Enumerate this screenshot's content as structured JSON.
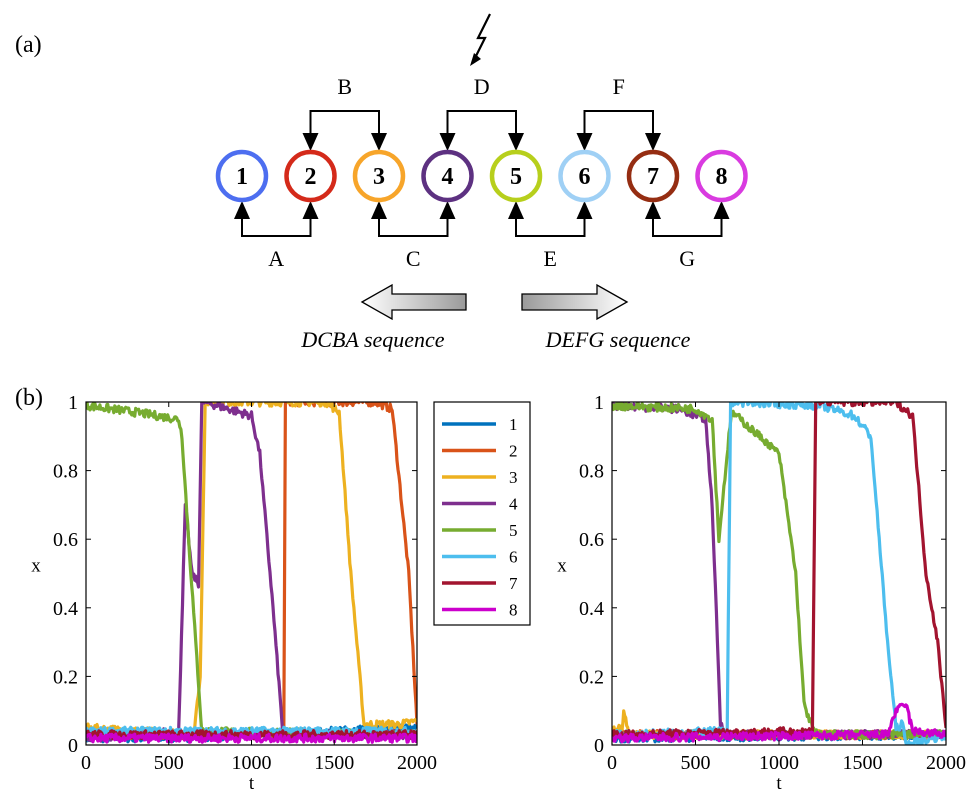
{
  "panel_a": {
    "label": "(a)",
    "lightning_icon": "lightning-bolt-icon",
    "nodes": [
      {
        "id": "1",
        "color": "#4d6ef0"
      },
      {
        "id": "2",
        "color": "#d42a1a"
      },
      {
        "id": "3",
        "color": "#f7a52a"
      },
      {
        "id": "4",
        "color": "#5d3181"
      },
      {
        "id": "5",
        "color": "#b7cf1c"
      },
      {
        "id": "6",
        "color": "#9fd0f5"
      },
      {
        "id": "7",
        "color": "#952d12"
      },
      {
        "id": "8",
        "color": "#d93be0"
      }
    ],
    "top_links": [
      {
        "label": "B",
        "from": 1,
        "to": 2
      },
      {
        "label": "D",
        "from": 3,
        "to": 4
      },
      {
        "label": "F",
        "from": 5,
        "to": 6
      }
    ],
    "bottom_links": [
      {
        "label": "A",
        "from": 0,
        "to": 1
      },
      {
        "label": "C",
        "from": 2,
        "to": 3
      },
      {
        "label": "E",
        "from": 4,
        "to": 5
      },
      {
        "label": "G",
        "from": 6,
        "to": 7
      }
    ],
    "left_sequence": "DCBA sequence",
    "right_sequence": "DEFG sequence"
  },
  "panel_b": {
    "label": "(b)"
  },
  "legend": [
    {
      "name": "1",
      "color": "#0072bd"
    },
    {
      "name": "2",
      "color": "#d95319"
    },
    {
      "name": "3",
      "color": "#edb120"
    },
    {
      "name": "4",
      "color": "#7e2f8e"
    },
    {
      "name": "5",
      "color": "#77ac30"
    },
    {
      "name": "6",
      "color": "#4dbeee"
    },
    {
      "name": "7",
      "color": "#a2142f"
    },
    {
      "name": "8",
      "color": "#cc00cc"
    }
  ],
  "chart_data": [
    {
      "type": "line",
      "xlabel": "t",
      "ylabel": "x",
      "xlim": [
        0,
        2000
      ],
      "ylim": [
        0,
        1
      ],
      "xticks": [
        0,
        500,
        1000,
        1500,
        2000
      ],
      "yticks": [
        0,
        0.2,
        0.4,
        0.6,
        0.8,
        1
      ],
      "series": [
        {
          "name": "1",
          "x": [
            0,
            500,
            1000,
            1500,
            2000
          ],
          "y": [
            0.02,
            0.02,
            0.03,
            0.04,
            0.05
          ]
        },
        {
          "name": "2",
          "x": [
            0,
            1180,
            1195,
            1205,
            1750,
            1850,
            1950,
            2000
          ],
          "y": [
            0.03,
            0.03,
            0.03,
            1.0,
            1.0,
            0.98,
            0.5,
            0.06
          ]
        },
        {
          "name": "3",
          "x": [
            0,
            650,
            690,
            720,
            1200,
            1450,
            1530,
            1600,
            1680,
            1900,
            2000
          ],
          "y": [
            0.05,
            0.03,
            0.2,
            1.0,
            1.0,
            1.0,
            0.97,
            0.5,
            0.06,
            0.06,
            0.07
          ]
        },
        {
          "name": "4",
          "x": [
            0,
            560,
            600,
            640,
            680,
            700,
            720,
            1000,
            1050,
            1130,
            1190,
            1210,
            2000
          ],
          "y": [
            0.02,
            0.04,
            0.7,
            0.5,
            0.47,
            1.0,
            1.0,
            0.96,
            0.85,
            0.4,
            0.03,
            0.03,
            0.03
          ]
        },
        {
          "name": "5",
          "x": [
            0,
            300,
            560,
            580,
            620,
            700,
            2000
          ],
          "y": [
            0.99,
            0.97,
            0.95,
            0.9,
            0.6,
            0.04,
            0.03
          ]
        },
        {
          "name": "6",
          "x": [
            0,
            2000
          ],
          "y": [
            0.04,
            0.04
          ]
        },
        {
          "name": "7",
          "x": [
            0,
            2000
          ],
          "y": [
            0.03,
            0.03
          ]
        },
        {
          "name": "8",
          "x": [
            0,
            2000
          ],
          "y": [
            0.02,
            0.02
          ]
        }
      ]
    },
    {
      "type": "line",
      "xlabel": "t",
      "ylabel": "x",
      "xlim": [
        0,
        2000
      ],
      "ylim": [
        0,
        1
      ],
      "xticks": [
        0,
        500,
        1000,
        1500,
        2000
      ],
      "yticks": [
        0,
        0.2,
        0.4,
        0.6,
        0.8,
        1
      ],
      "series": [
        {
          "name": "1",
          "x": [
            0,
            2000
          ],
          "y": [
            0.02,
            0.03
          ]
        },
        {
          "name": "2",
          "x": [
            0,
            2000
          ],
          "y": [
            0.03,
            0.03
          ]
        },
        {
          "name": "3",
          "x": [
            0,
            60,
            70,
            100,
            2000
          ],
          "y": [
            0.04,
            0.05,
            0.1,
            0.03,
            0.03
          ]
        },
        {
          "name": "4",
          "x": [
            0,
            400,
            560,
            600,
            650,
            680,
            2000
          ],
          "y": [
            0.99,
            0.98,
            0.95,
            0.7,
            0.06,
            0.03,
            0.03
          ]
        },
        {
          "name": "5",
          "x": [
            0,
            500,
            600,
            640,
            700,
            720,
            1000,
            1100,
            1150,
            1200,
            1230,
            2000
          ],
          "y": [
            0.99,
            0.98,
            0.95,
            0.6,
            0.9,
            0.97,
            0.85,
            0.5,
            0.12,
            0.05,
            0.03,
            0.03
          ]
        },
        {
          "name": "6",
          "x": [
            0,
            690,
            710,
            730,
            1250,
            1450,
            1550,
            1600,
            1650,
            1700,
            1740,
            1760,
            2000
          ],
          "y": [
            0.03,
            0.04,
            1.0,
            1.0,
            0.99,
            0.96,
            0.9,
            0.6,
            0.3,
            0.05,
            0.06,
            0.0,
            0.03
          ]
        },
        {
          "name": "7",
          "x": [
            0,
            1200,
            1220,
            1240,
            1700,
            1800,
            1880,
            1950,
            2000
          ],
          "y": [
            0.03,
            0.04,
            1.0,
            1.0,
            1.0,
            0.96,
            0.5,
            0.3,
            0.05
          ]
        },
        {
          "name": "8",
          "x": [
            0,
            1650,
            1700,
            1760,
            1800,
            2000
          ],
          "y": [
            0.02,
            0.03,
            0.1,
            0.12,
            0.04,
            0.03
          ]
        }
      ]
    }
  ]
}
